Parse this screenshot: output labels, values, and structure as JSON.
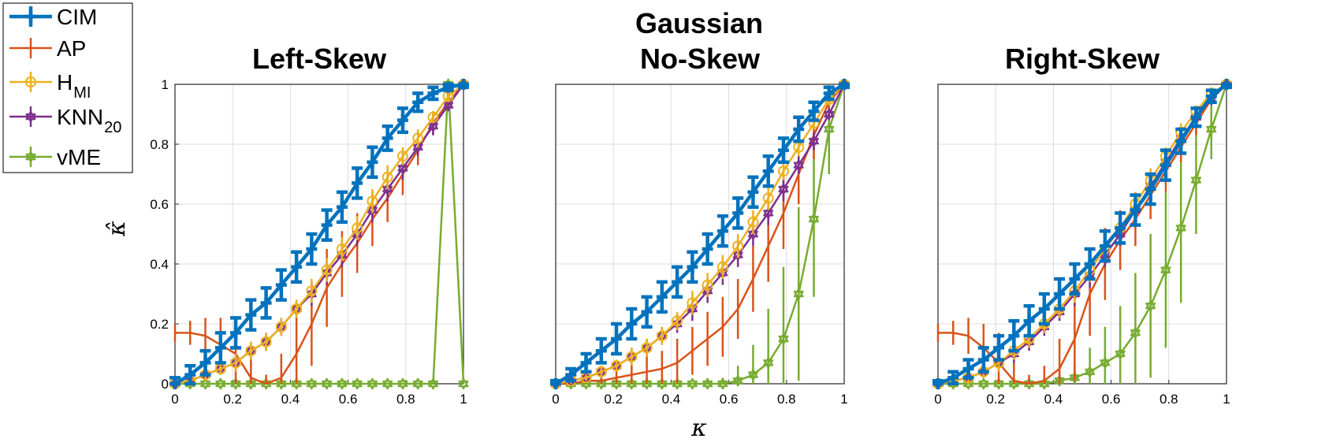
{
  "chart_data": {
    "type": "line",
    "title": "Gaussian",
    "xlabel": "κ",
    "ylabel": "κ̂",
    "xlim": [
      0,
      1
    ],
    "ylim": [
      0,
      1
    ],
    "x_ticks": [
      "0",
      "0.2",
      "0.4",
      "0.6",
      "0.8",
      "1"
    ],
    "y_ticks": [
      "0",
      "0.2",
      "0.4",
      "0.6",
      "0.8",
      "1"
    ],
    "grid": true,
    "legend_placement": "outside-top-left",
    "legend": [
      {
        "key": "CIM",
        "label": "CIM",
        "sub": "",
        "color": "#0072BD",
        "marker": "plus"
      },
      {
        "key": "AP",
        "label": "AP",
        "sub": "",
        "color": "#D95319",
        "marker": "none"
      },
      {
        "key": "HMI",
        "label": "H",
        "sub": "MI",
        "color": "#EDB120",
        "marker": "circle"
      },
      {
        "key": "KNN20",
        "label": "KNN",
        "sub": "20",
        "color": "#7E2F8E",
        "marker": "hexagram"
      },
      {
        "key": "vME",
        "label": "vME",
        "sub": "",
        "color": "#77AC30",
        "marker": "hexagram"
      }
    ],
    "x": [
      0,
      0.0526,
      0.1053,
      0.1579,
      0.2105,
      0.2632,
      0.3158,
      0.3684,
      0.4211,
      0.4737,
      0.5263,
      0.5789,
      0.6316,
      0.6842,
      0.7368,
      0.7895,
      0.8421,
      0.8947,
      0.9474,
      1
    ],
    "panels": [
      {
        "title": "Left-Skew",
        "series": [
          {
            "name": "CIM",
            "values": [
              0,
              0.03,
              0.07,
              0.12,
              0.17,
              0.23,
              0.27,
              0.33,
              0.39,
              0.45,
              0.53,
              0.59,
              0.67,
              0.74,
              0.82,
              0.88,
              0.94,
              0.97,
              0.99,
              1.0
            ],
            "errors": [
              0.02,
              0.03,
              0.04,
              0.05,
              0.05,
              0.05,
              0.05,
              0.05,
              0.05,
              0.05,
              0.05,
              0.05,
              0.05,
              0.05,
              0.04,
              0.04,
              0.03,
              0.02,
              0.01,
              0.01
            ]
          },
          {
            "name": "AP",
            "values": [
              0.17,
              0.17,
              0.16,
              0.13,
              0.1,
              0.02,
              0.0,
              0.02,
              0.1,
              0.2,
              0.32,
              0.4,
              0.47,
              0.55,
              0.62,
              0.7,
              0.78,
              0.87,
              0.94,
              1.0
            ],
            "errors": [
              0.03,
              0.04,
              0.06,
              0.09,
              0.11,
              0.1,
              0.03,
              0.08,
              0.12,
              0.14,
              0.13,
              0.11,
              0.1,
              0.09,
              0.08,
              0.07,
              0.05,
              0.04,
              0.02,
              0.01
            ]
          },
          {
            "name": "HMI",
            "values": [
              0,
              0.01,
              0.03,
              0.05,
              0.07,
              0.11,
              0.14,
              0.19,
              0.25,
              0.31,
              0.38,
              0.45,
              0.52,
              0.61,
              0.69,
              0.76,
              0.82,
              0.89,
              0.96,
              1.0
            ],
            "errors": [
              0.01,
              0.01,
              0.02,
              0.02,
              0.03,
              0.03,
              0.03,
              0.03,
              0.03,
              0.04,
              0.04,
              0.04,
              0.04,
              0.04,
              0.04,
              0.03,
              0.03,
              0.02,
              0.02,
              0.01
            ]
          },
          {
            "name": "KNN20",
            "values": [
              0,
              0.01,
              0.03,
              0.05,
              0.07,
              0.11,
              0.14,
              0.19,
              0.25,
              0.3,
              0.37,
              0.43,
              0.5,
              0.58,
              0.65,
              0.72,
              0.79,
              0.86,
              0.93,
              1.0
            ],
            "errors": [
              0.01,
              0.01,
              0.02,
              0.02,
              0.03,
              0.03,
              0.03,
              0.03,
              0.03,
              0.04,
              0.04,
              0.04,
              0.04,
              0.04,
              0.04,
              0.04,
              0.03,
              0.03,
              0.02,
              0.01
            ]
          },
          {
            "name": "vME",
            "values": [
              0,
              0,
              0,
              0,
              0,
              0,
              0,
              0,
              0,
              0,
              0,
              0,
              0,
              0,
              0,
              0,
              0,
              0,
              1.0,
              0
            ],
            "errors": [
              0,
              0,
              0,
              0,
              0,
              0,
              0,
              0,
              0,
              0,
              0,
              0,
              0,
              0,
              0,
              0,
              0,
              0.01,
              0.01,
              0.01
            ]
          }
        ]
      },
      {
        "title": "No-Skew",
        "series": [
          {
            "name": "CIM",
            "values": [
              0,
              0.03,
              0.07,
              0.11,
              0.15,
              0.2,
              0.24,
              0.29,
              0.34,
              0.39,
              0.45,
              0.51,
              0.57,
              0.64,
              0.71,
              0.78,
              0.85,
              0.91,
              0.97,
              1.0
            ],
            "errors": [
              0.01,
              0.02,
              0.03,
              0.04,
              0.05,
              0.05,
              0.05,
              0.05,
              0.05,
              0.05,
              0.05,
              0.05,
              0.05,
              0.05,
              0.05,
              0.04,
              0.04,
              0.03,
              0.02,
              0.01
            ]
          },
          {
            "name": "AP",
            "values": [
              0,
              0.0,
              0.01,
              0.01,
              0.02,
              0.03,
              0.04,
              0.05,
              0.07,
              0.11,
              0.15,
              0.19,
              0.25,
              0.35,
              0.46,
              0.57,
              0.7,
              0.83,
              0.94,
              1.0
            ],
            "errors": [
              0.01,
              0.01,
              0.01,
              0.02,
              0.03,
              0.04,
              0.05,
              0.06,
              0.08,
              0.08,
              0.09,
              0.1,
              0.1,
              0.11,
              0.12,
              0.12,
              0.1,
              0.08,
              0.04,
              0.01
            ]
          },
          {
            "name": "HMI",
            "values": [
              0,
              0.01,
              0.02,
              0.04,
              0.06,
              0.09,
              0.12,
              0.16,
              0.21,
              0.27,
              0.33,
              0.39,
              0.46,
              0.54,
              0.62,
              0.71,
              0.79,
              0.87,
              0.95,
              1.0
            ],
            "errors": [
              0.01,
              0.01,
              0.01,
              0.02,
              0.02,
              0.03,
              0.03,
              0.03,
              0.03,
              0.04,
              0.04,
              0.04,
              0.04,
              0.04,
              0.04,
              0.03,
              0.03,
              0.02,
              0.02,
              0.01
            ]
          },
          {
            "name": "KNN20",
            "values": [
              0,
              0.01,
              0.02,
              0.04,
              0.06,
              0.09,
              0.12,
              0.16,
              0.2,
              0.25,
              0.31,
              0.37,
              0.43,
              0.5,
              0.57,
              0.65,
              0.73,
              0.81,
              0.9,
              1.0
            ],
            "errors": [
              0.01,
              0.01,
              0.01,
              0.02,
              0.02,
              0.03,
              0.03,
              0.03,
              0.03,
              0.04,
              0.04,
              0.04,
              0.04,
              0.04,
              0.04,
              0.04,
              0.03,
              0.03,
              0.02,
              0.01
            ]
          },
          {
            "name": "vME",
            "values": [
              0,
              0,
              0,
              0,
              0,
              0,
              0,
              0,
              0,
              0,
              0,
              0,
              0.01,
              0.03,
              0.07,
              0.15,
              0.3,
              0.55,
              0.85,
              1.0
            ],
            "errors": [
              0,
              0,
              0,
              0,
              0,
              0,
              0,
              0,
              0,
              0,
              0.01,
              0.02,
              0.05,
              0.1,
              0.18,
              0.24,
              0.29,
              0.26,
              0.15,
              0.01
            ]
          }
        ]
      },
      {
        "title": "Right-Skew",
        "series": [
          {
            "name": "CIM",
            "values": [
              0,
              0.02,
              0.05,
              0.08,
              0.12,
              0.16,
              0.21,
              0.25,
              0.3,
              0.35,
              0.4,
              0.46,
              0.52,
              0.58,
              0.65,
              0.73,
              0.81,
              0.89,
              0.96,
              1.0
            ],
            "errors": [
              0.01,
              0.02,
              0.03,
              0.04,
              0.04,
              0.05,
              0.05,
              0.05,
              0.05,
              0.05,
              0.05,
              0.05,
              0.05,
              0.05,
              0.05,
              0.05,
              0.04,
              0.03,
              0.02,
              0.01
            ]
          },
          {
            "name": "AP",
            "values": [
              0.17,
              0.17,
              0.16,
              0.12,
              0.07,
              0.01,
              0.0,
              0.01,
              0.05,
              0.15,
              0.3,
              0.4,
              0.48,
              0.55,
              0.63,
              0.71,
              0.79,
              0.87,
              0.95,
              1.0
            ],
            "errors": [
              0.03,
              0.04,
              0.06,
              0.08,
              0.1,
              0.08,
              0.03,
              0.05,
              0.1,
              0.14,
              0.14,
              0.12,
              0.1,
              0.09,
              0.08,
              0.07,
              0.05,
              0.04,
              0.02,
              0.01
            ]
          },
          {
            "name": "HMI",
            "values": [
              0,
              0.01,
              0.02,
              0.04,
              0.07,
              0.11,
              0.15,
              0.2,
              0.25,
              0.31,
              0.38,
              0.45,
              0.52,
              0.6,
              0.68,
              0.76,
              0.84,
              0.91,
              0.97,
              1.0
            ],
            "errors": [
              0.01,
              0.01,
              0.02,
              0.02,
              0.03,
              0.03,
              0.03,
              0.03,
              0.03,
              0.04,
              0.04,
              0.04,
              0.04,
              0.04,
              0.04,
              0.03,
              0.03,
              0.02,
              0.02,
              0.01
            ]
          },
          {
            "name": "KNN20",
            "values": [
              0,
              0.01,
              0.02,
              0.04,
              0.07,
              0.1,
              0.14,
              0.19,
              0.24,
              0.3,
              0.36,
              0.43,
              0.5,
              0.58,
              0.66,
              0.74,
              0.82,
              0.89,
              0.95,
              1.0
            ],
            "errors": [
              0.01,
              0.01,
              0.02,
              0.02,
              0.03,
              0.03,
              0.03,
              0.03,
              0.03,
              0.04,
              0.04,
              0.04,
              0.04,
              0.04,
              0.04,
              0.04,
              0.03,
              0.03,
              0.02,
              0.01
            ]
          },
          {
            "name": "vME",
            "values": [
              0,
              0,
              0,
              0,
              0,
              0,
              0,
              0,
              0.01,
              0.02,
              0.04,
              0.07,
              0.1,
              0.17,
              0.26,
              0.38,
              0.52,
              0.68,
              0.85,
              1.0
            ],
            "errors": [
              0,
              0,
              0,
              0,
              0,
              0.01,
              0.01,
              0.02,
              0.03,
              0.05,
              0.08,
              0.12,
              0.16,
              0.2,
              0.24,
              0.26,
              0.25,
              0.18,
              0.1,
              0.01
            ]
          }
        ]
      }
    ]
  }
}
